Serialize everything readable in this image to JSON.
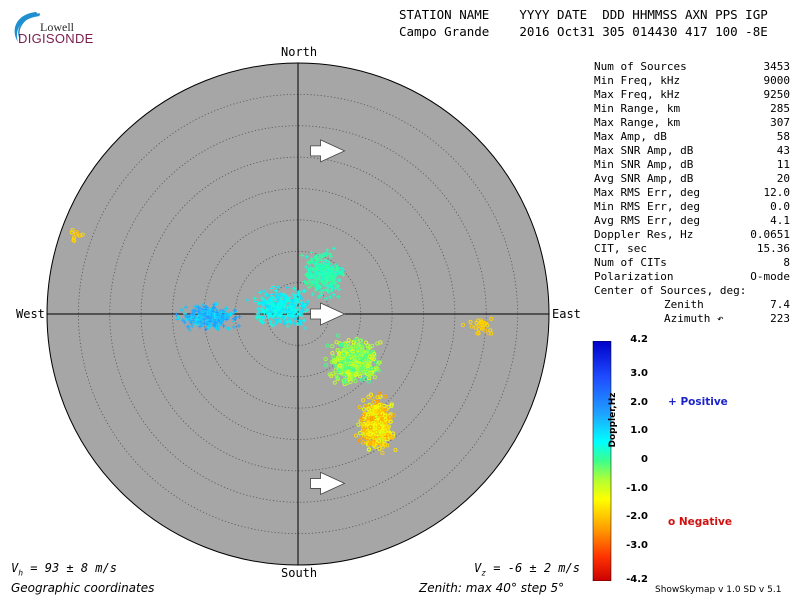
{
  "logo": {
    "line1": "Lowell",
    "line2": "DIGISONDE"
  },
  "header": {
    "line1": "STATION NAME    YYYY DATE  DDD HHMMSS AXN PPS IGP",
    "line2": "Campo Grande    2016 Oct31 305 014430 417 100 -8E"
  },
  "compass": {
    "north": "North",
    "south": "South",
    "west": "West",
    "east": "East"
  },
  "stats": [
    {
      "label": "Num of Sources",
      "value": "3453"
    },
    {
      "label": "Min Freq, kHz",
      "value": "9000"
    },
    {
      "label": "Max Freq, kHz",
      "value": "9250"
    },
    {
      "label": "Min Range, km",
      "value": "285"
    },
    {
      "label": "Max Range, km",
      "value": "307"
    },
    {
      "label": "Max Amp, dB",
      "value": "58"
    },
    {
      "label": "Max SNR Amp, dB",
      "value": "43"
    },
    {
      "label": "Min SNR Amp, dB",
      "value": "11"
    },
    {
      "label": "Avg SNR Amp, dB",
      "value": "20"
    },
    {
      "label": "Max RMS Err, deg",
      "value": "12.0"
    },
    {
      "label": "Min RMS Err, deg",
      "value": "0.0"
    },
    {
      "label": "Avg RMS Err, deg",
      "value": "4.1"
    },
    {
      "label": "Doppler Res, Hz",
      "value": "0.0651"
    },
    {
      "label": "CIT, sec",
      "value": "15.36"
    },
    {
      "label": "Num of CITs",
      "value": "8"
    },
    {
      "label": "Polarization",
      "value": "O-mode"
    },
    {
      "label": "Center of Sources, deg:",
      "value": ""
    },
    {
      "label": "Zenith",
      "value": "7.4"
    },
    {
      "label": "Azimuth ↶",
      "value": "223"
    }
  ],
  "footer": {
    "vh_label": "V",
    "vh_sub": "h",
    "vh_value": " = 93 ± 8 m/s",
    "vz_label": "V",
    "vz_sub": "z",
    "vz_value": " = -6 ± 2 m/s",
    "coords": "Geographic coordinates",
    "zenith": "Zenith: max 40°  step 5°",
    "version": "ShowSkymap v 1.0  SD v 5.1"
  },
  "legend": {
    "positive": "+ Positive",
    "negative": "o Negative",
    "positive_color": "#1c24c8",
    "negative_color": "#d01010"
  },
  "chart_data": {
    "type": "scatter",
    "projection": "polar skymap",
    "zenith_max_deg": 40,
    "zenith_step_deg": 5,
    "background_color": "#a6a6a6",
    "colorbar": {
      "label": "Doppler,Hz",
      "min": -4.2,
      "max": 4.2,
      "ticks": [
        "4.2",
        "3.0",
        "2.0",
        "1.0",
        "0",
        "-1.0",
        "-2.0",
        "-3.0",
        "-4.2"
      ]
    },
    "clusters": [
      {
        "marker": "+",
        "doppler_min": 1.0,
        "doppler_max": 2.0,
        "x_deg": [
          -20,
          -8
        ],
        "y_deg": [
          -3,
          2
        ],
        "n": 260
      },
      {
        "marker": "+",
        "doppler_min": 0.5,
        "doppler_max": 1.2,
        "x_deg": [
          -9,
          3
        ],
        "y_deg": [
          -3,
          5
        ],
        "n": 320
      },
      {
        "marker": "+",
        "doppler_min": 0.0,
        "doppler_max": 0.6,
        "x_deg": [
          0,
          8
        ],
        "y_deg": [
          2,
          11
        ],
        "n": 300
      },
      {
        "marker": "o",
        "doppler_min": -1.2,
        "doppler_max": 0.2,
        "x_deg": [
          4,
          14
        ],
        "y_deg": [
          -12,
          -3
        ],
        "n": 500
      },
      {
        "marker": "o",
        "doppler_min": -2.5,
        "doppler_max": -1.0,
        "x_deg": [
          9,
          16
        ],
        "y_deg": [
          -23,
          -12
        ],
        "n": 420
      },
      {
        "marker": "o",
        "doppler_min": -2.1,
        "doppler_max": -1.7,
        "x_deg": [
          25,
          33
        ],
        "y_deg": [
          -4,
          0
        ],
        "n": 28
      },
      {
        "marker": "o",
        "doppler_min": -2.1,
        "doppler_max": -1.7,
        "x_deg": [
          -37,
          -33
        ],
        "y_deg": [
          11,
          14
        ],
        "n": 12
      }
    ],
    "vectors": [
      {
        "x_deg": 2,
        "y_deg": 26
      },
      {
        "x_deg": 2,
        "y_deg": 0
      },
      {
        "x_deg": 2,
        "y_deg": -27
      }
    ]
  }
}
